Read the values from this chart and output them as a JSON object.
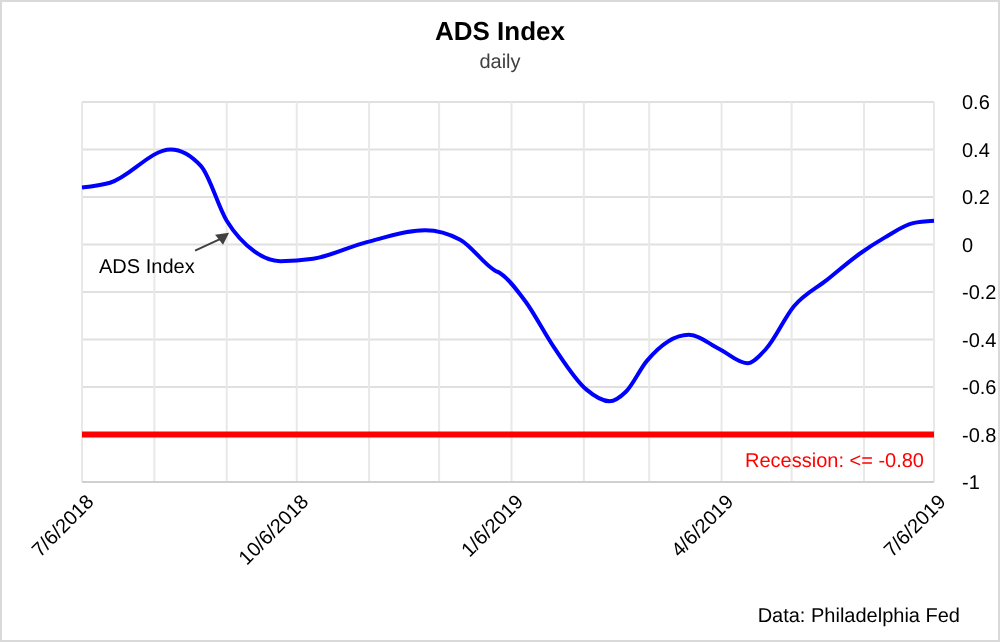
{
  "chart_data": {
    "type": "line",
    "title": "ADS Index",
    "subtitle": "daily",
    "x": [
      "2018-07-06",
      "2018-07-18",
      "2018-08-13",
      "2018-08-26",
      "2018-09-06",
      "2018-09-18",
      "2018-09-29",
      "2018-10-13",
      "2018-11-05",
      "2018-11-30",
      "2018-12-15",
      "2018-12-30",
      "2019-01-01",
      "2019-01-12",
      "2019-01-24",
      "2019-02-07",
      "2019-02-17",
      "2019-02-24",
      "2019-03-05",
      "2019-03-23",
      "2019-04-05",
      "2019-04-17",
      "2019-04-25",
      "2019-05-07",
      "2019-05-21",
      "2019-06-04",
      "2019-06-15",
      "2019-06-27",
      "2019-07-06"
    ],
    "series": [
      {
        "color": "#0000ff",
        "values": [
          0.24,
          0.26,
          0.4,
          0.33,
          0.1,
          -0.03,
          -0.07,
          -0.06,
          0.01,
          0.06,
          0.02,
          -0.11,
          -0.12,
          -0.24,
          -0.43,
          -0.61,
          -0.66,
          -0.62,
          -0.49,
          -0.38,
          -0.44,
          -0.5,
          -0.44,
          -0.26,
          -0.15,
          -0.04,
          0.03,
          0.09,
          0.1
        ]
      }
    ],
    "xlim": [
      "2018-07-06",
      "2019-07-06"
    ],
    "xticks": [
      {
        "value": "2018-07-06",
        "label": "7/6/2018"
      },
      {
        "value": "2018-08-06",
        "label": null
      },
      {
        "value": "2018-09-06",
        "label": null
      },
      {
        "value": "2018-10-06",
        "label": "10/6/2018"
      },
      {
        "value": "2018-11-06",
        "label": null
      },
      {
        "value": "2018-12-06",
        "label": null
      },
      {
        "value": "2019-01-06",
        "label": "1/6/2019"
      },
      {
        "value": "2019-02-06",
        "label": null
      },
      {
        "value": "2019-03-06",
        "label": null
      },
      {
        "value": "2019-04-06",
        "label": "4/6/2019"
      },
      {
        "value": "2019-05-06",
        "label": null
      },
      {
        "value": "2019-06-06",
        "label": null
      },
      {
        "value": "2019-07-06",
        "label": "7/6/2019"
      }
    ],
    "ylim": [
      -1,
      0.6
    ],
    "yticks": [
      -1,
      -0.8,
      -0.6,
      -0.4,
      -0.2,
      0,
      0.2,
      0.4,
      0.6
    ],
    "grid": true,
    "marker": "none",
    "line_style": "solid",
    "ref_lines": [
      {
        "axis": "y",
        "value": -0.8,
        "label": "Recession: <= -0.80",
        "color": "#ff0000"
      }
    ],
    "annotations": [
      {
        "text": "ADS Index",
        "x": "2018-09-07",
        "y": 0.05
      },
      "Data: Philadelphia Fed"
    ]
  }
}
